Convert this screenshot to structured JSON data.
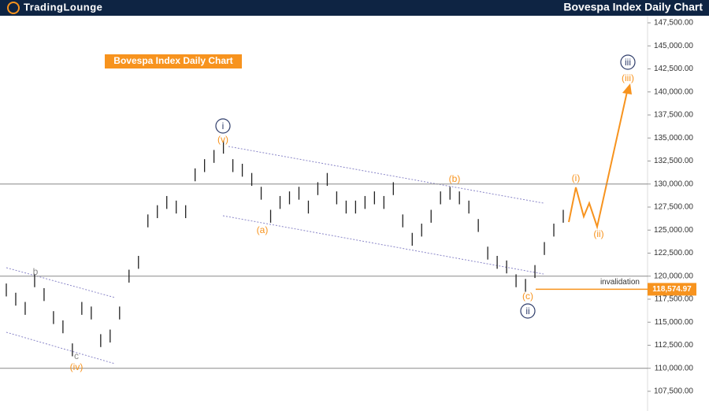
{
  "header": {
    "logo": "TradingLounge",
    "title": "Bovespa Index Daily Chart"
  },
  "chart_data": {
    "type": "ohlc",
    "title": "Bovespa Index Daily Chart",
    "series": [
      {
        "color": "#222222",
        "high": [
          119200,
          118200,
          117200,
          120200,
          118700,
          116200,
          115200,
          112700,
          117200,
          116700,
          113700,
          114200,
          116700,
          120700,
          122200,
          126700,
          127700,
          128700,
          128200,
          127700,
          131700,
          132700,
          133700,
          134700,
          132700,
          132200,
          131200,
          129700,
          127200,
          128700,
          129200,
          129700,
          128200,
          130200,
          131200,
          129200,
          128200,
          128200,
          128700,
          129200,
          128700,
          130200,
          126700,
          124700,
          125700,
          127200,
          129200,
          129700,
          129200,
          128200,
          126200,
          123200,
          122200,
          121700,
          120200,
          119700,
          121200,
          123700,
          125700,
          127200
        ],
        "low": [
          117800,
          116800,
          115800,
          118800,
          117300,
          114800,
          113800,
          111300,
          115800,
          115300,
          112300,
          112800,
          115300,
          119300,
          120800,
          125300,
          126300,
          127300,
          126800,
          126300,
          130300,
          131300,
          132300,
          133300,
          131300,
          130800,
          129800,
          128300,
          125800,
          127300,
          127800,
          128300,
          126800,
          128800,
          129800,
          127800,
          126800,
          126800,
          127300,
          127800,
          127300,
          128800,
          125300,
          123300,
          124300,
          125800,
          127800,
          128300,
          127800,
          126800,
          124800,
          121800,
          120800,
          120300,
          118800,
          118300,
          119800,
          122300,
          124300,
          125800
        ]
      }
    ],
    "ylim": [
      105360,
      149980
    ],
    "yticks": [
      {
        "value": 107500,
        "label": "107,500.00"
      },
      {
        "value": 110000,
        "label": "110,000.00"
      },
      {
        "value": 112500,
        "label": "112,500.00"
      },
      {
        "value": 115000,
        "label": "115,000.00"
      },
      {
        "value": 117500,
        "label": "117,500.00"
      },
      {
        "value": 120000,
        "label": "120,000.00"
      },
      {
        "value": 122500,
        "label": "122,500.00"
      },
      {
        "value": 125000,
        "label": "125,000.00"
      },
      {
        "value": 127500,
        "label": "127,500.00"
      },
      {
        "value": 130000,
        "label": "130,000.00"
      },
      {
        "value": 132500,
        "label": "132,500.00"
      },
      {
        "value": 135000,
        "label": "135,000.00"
      },
      {
        "value": 137500,
        "label": "137,500.00"
      },
      {
        "value": 140000,
        "label": "140,000.00"
      },
      {
        "value": 142500,
        "label": "142,500.00"
      },
      {
        "value": 145000,
        "label": "145,000.00"
      },
      {
        "value": 147500,
        "label": "147,500.00"
      }
    ],
    "hlines": [
      130000,
      120000,
      110000
    ],
    "level": {
      "value": 118574.97,
      "label": "118,574.97",
      "text": "invalidation",
      "color": "#f7931e"
    },
    "annotations": [
      "i",
      "(v)",
      "(a)",
      "(b)",
      "(c)",
      "ii",
      "(i)",
      "(ii)",
      "(iii)",
      "iii",
      "b",
      "c",
      "(iv)"
    ]
  }
}
